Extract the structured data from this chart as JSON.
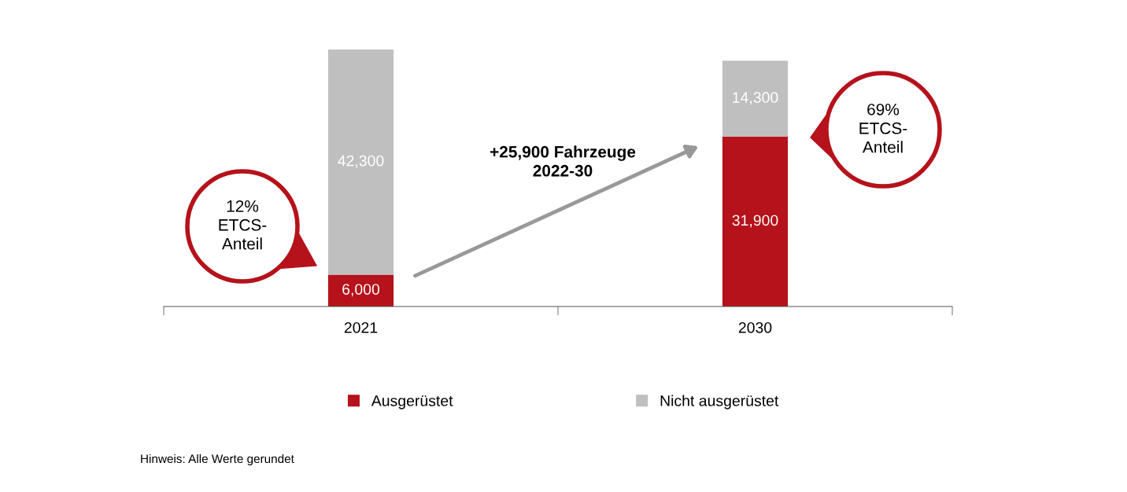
{
  "chart_data": {
    "type": "bar",
    "stacked": true,
    "categories": [
      "2021",
      "2030"
    ],
    "series": [
      {
        "name": "Ausgerüstet",
        "color": "#b5121b",
        "values": [
          6000,
          31900
        ],
        "value_labels": [
          "6,000",
          "31,900"
        ]
      },
      {
        "name": "Nicht ausgerüstet",
        "color": "#bfbfbf",
        "values": [
          42300,
          14300
        ],
        "value_labels": [
          "42,300",
          "14,300"
        ]
      }
    ],
    "annotations": [
      "12%\nETCS-\nAnteil",
      "+25,900 Fahrzeuge\n2022-30",
      "69%\nETCS-\nAnteil",
      "Hinweis: Alle Werte gerundet"
    ],
    "legend": "bottom",
    "grid": false
  }
}
